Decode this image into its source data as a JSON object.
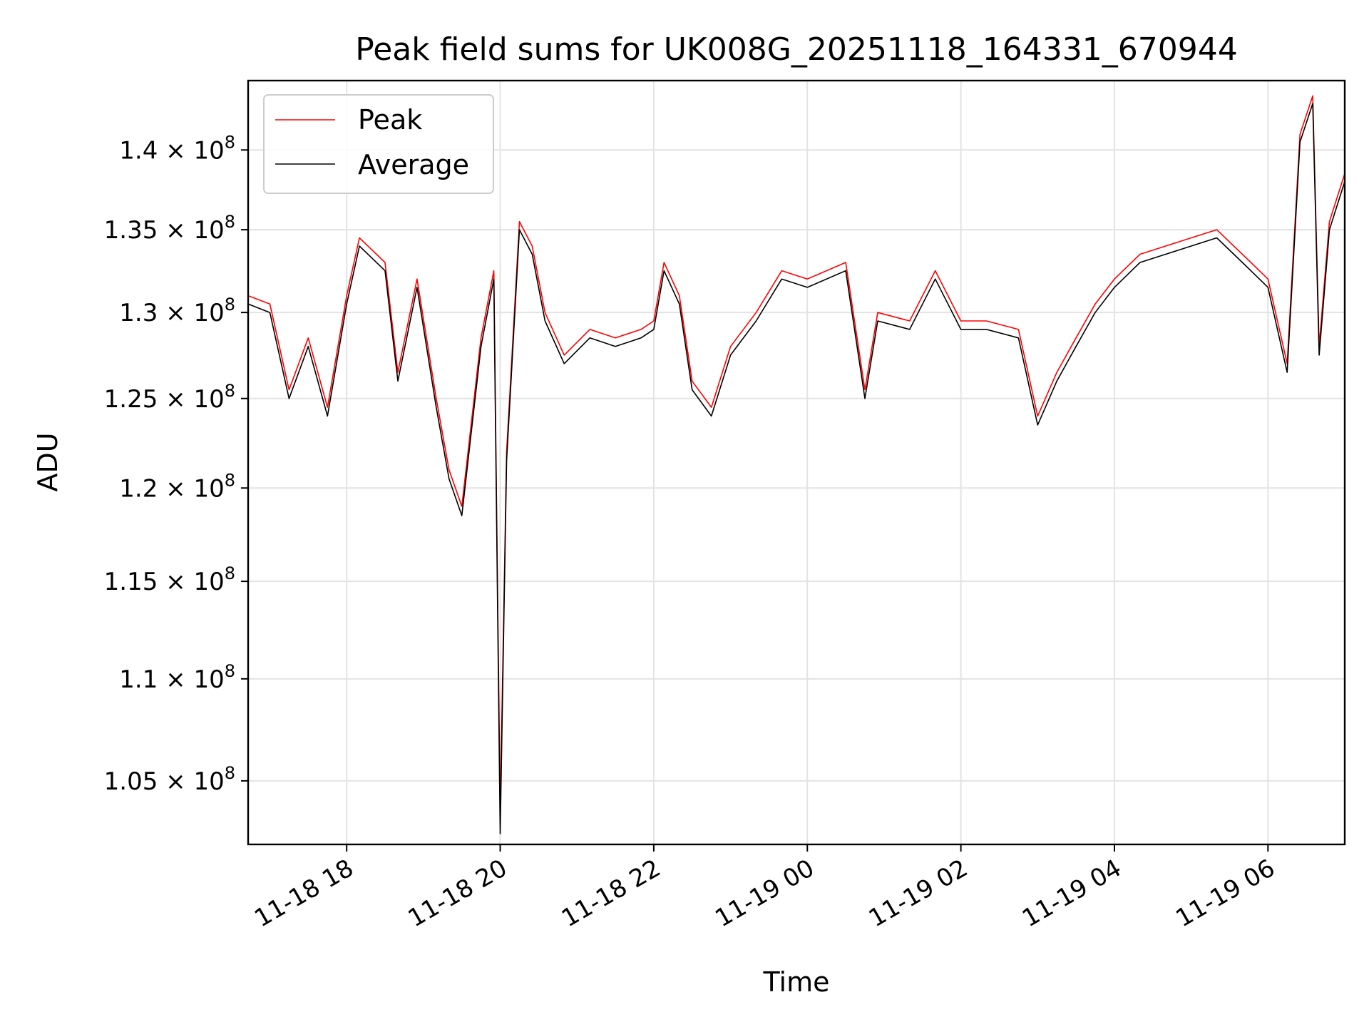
{
  "chart_data": {
    "type": "line",
    "title": "Peak field sums for UK008G_20251118_164331_670944",
    "xlabel": "Time",
    "ylabel": "ADU",
    "yscale": "log",
    "grid": true,
    "legend_position": "top-left",
    "xlim": [
      "2025-11-18 16:43",
      "2025-11-19 07:00"
    ],
    "ylim": [
      102000000,
      144500000
    ],
    "x_ticks": [
      "11-18 18",
      "11-18 20",
      "11-18 22",
      "11-19 00",
      "11-19 02",
      "11-19 04",
      "11-19 06"
    ],
    "y_ticks": [
      {
        "value": 105000000,
        "mantissa": "1.05",
        "exp": "8"
      },
      {
        "value": 110000000,
        "mantissa": "1.1",
        "exp": "8"
      },
      {
        "value": 115000000,
        "mantissa": "1.15",
        "exp": "8"
      },
      {
        "value": 120000000,
        "mantissa": "1.2",
        "exp": "8"
      },
      {
        "value": 125000000,
        "mantissa": "1.25",
        "exp": "8"
      },
      {
        "value": 130000000,
        "mantissa": "1.3",
        "exp": "8"
      },
      {
        "value": 135000000,
        "mantissa": "1.35",
        "exp": "8"
      },
      {
        "value": 140000000,
        "mantissa": "1.4",
        "exp": "8"
      }
    ],
    "series": [
      {
        "name": "Peak",
        "color": "#ff0000",
        "x": [
          "2025-11-18 16:43",
          "2025-11-18 17:00",
          "2025-11-18 17:15",
          "2025-11-18 17:30",
          "2025-11-18 17:45",
          "2025-11-18 18:00",
          "2025-11-18 18:10",
          "2025-11-18 18:30",
          "2025-11-18 18:40",
          "2025-11-18 18:55",
          "2025-11-18 19:10",
          "2025-11-18 19:20",
          "2025-11-18 19:30",
          "2025-11-18 19:45",
          "2025-11-18 19:55",
          "2025-11-18 20:00",
          "2025-11-18 20:05",
          "2025-11-18 20:15",
          "2025-11-18 20:25",
          "2025-11-18 20:35",
          "2025-11-18 20:50",
          "2025-11-18 21:10",
          "2025-11-18 21:30",
          "2025-11-18 21:50",
          "2025-11-18 22:00",
          "2025-11-18 22:08",
          "2025-11-18 22:20",
          "2025-11-18 22:30",
          "2025-11-18 22:45",
          "2025-11-18 23:00",
          "2025-11-18 23:20",
          "2025-11-18 23:40",
          "2025-11-19 00:00",
          "2025-11-19 00:30",
          "2025-11-19 00:45",
          "2025-11-19 00:55",
          "2025-11-19 01:20",
          "2025-11-19 01:40",
          "2025-11-19 02:00",
          "2025-11-19 02:20",
          "2025-11-19 02:45",
          "2025-11-19 03:00",
          "2025-11-19 03:15",
          "2025-11-19 03:30",
          "2025-11-19 03:45",
          "2025-11-19 04:00",
          "2025-11-19 04:20",
          "2025-11-19 04:40",
          "2025-11-19 05:00",
          "2025-11-19 05:20",
          "2025-11-19 05:40",
          "2025-11-19 06:00",
          "2025-11-19 06:15",
          "2025-11-19 06:25",
          "2025-11-19 06:35",
          "2025-11-19 06:40",
          "2025-11-19 06:48",
          "2025-11-19 07:00"
        ],
        "y": [
          131000000,
          130500000,
          125500000,
          128500000,
          124500000,
          131000000,
          134500000,
          133000000,
          126500000,
          132000000,
          125000000,
          121000000,
          119000000,
          128500000,
          132500000,
          103500000,
          122000000,
          135500000,
          134000000,
          130000000,
          127500000,
          129000000,
          128500000,
          129000000,
          129500000,
          133000000,
          131000000,
          126000000,
          124500000,
          128000000,
          130000000,
          132500000,
          132000000,
          133000000,
          125500000,
          130000000,
          129500000,
          132500000,
          129500000,
          129500000,
          129000000,
          124000000,
          126500000,
          128500000,
          130500000,
          132000000,
          133500000,
          134000000,
          134500000,
          135000000,
          133500000,
          132000000,
          127000000,
          141000000,
          143500000,
          128000000,
          135500000,
          138500000
        ]
      },
      {
        "name": "Average",
        "color": "#000000",
        "x": [
          "2025-11-18 16:43",
          "2025-11-18 17:00",
          "2025-11-18 17:15",
          "2025-11-18 17:30",
          "2025-11-18 17:45",
          "2025-11-18 18:00",
          "2025-11-18 18:10",
          "2025-11-18 18:30",
          "2025-11-18 18:40",
          "2025-11-18 18:55",
          "2025-11-18 19:10",
          "2025-11-18 19:20",
          "2025-11-18 19:30",
          "2025-11-18 19:45",
          "2025-11-18 19:55",
          "2025-11-18 20:00",
          "2025-11-18 20:05",
          "2025-11-18 20:15",
          "2025-11-18 20:25",
          "2025-11-18 20:35",
          "2025-11-18 20:50",
          "2025-11-18 21:10",
          "2025-11-18 21:30",
          "2025-11-18 21:50",
          "2025-11-18 22:00",
          "2025-11-18 22:08",
          "2025-11-18 22:20",
          "2025-11-18 22:30",
          "2025-11-18 22:45",
          "2025-11-18 23:00",
          "2025-11-18 23:20",
          "2025-11-18 23:40",
          "2025-11-19 00:00",
          "2025-11-19 00:30",
          "2025-11-19 00:45",
          "2025-11-19 00:55",
          "2025-11-19 01:20",
          "2025-11-19 01:40",
          "2025-11-19 02:00",
          "2025-11-19 02:20",
          "2025-11-19 02:45",
          "2025-11-19 03:00",
          "2025-11-19 03:15",
          "2025-11-19 03:30",
          "2025-11-19 03:45",
          "2025-11-19 04:00",
          "2025-11-19 04:20",
          "2025-11-19 04:40",
          "2025-11-19 05:00",
          "2025-11-19 05:20",
          "2025-11-19 05:40",
          "2025-11-19 06:00",
          "2025-11-19 06:15",
          "2025-11-19 06:25",
          "2025-11-19 06:35",
          "2025-11-19 06:40",
          "2025-11-19 06:48",
          "2025-11-19 07:00"
        ],
        "y": [
          130500000,
          130000000,
          125000000,
          128000000,
          124000000,
          130500000,
          134000000,
          132500000,
          126000000,
          131500000,
          124500000,
          120500000,
          118500000,
          128000000,
          132000000,
          102500000,
          121500000,
          135000000,
          133500000,
          129500000,
          127000000,
          128500000,
          128000000,
          128500000,
          129000000,
          132500000,
          130500000,
          125500000,
          124000000,
          127500000,
          129500000,
          132000000,
          131500000,
          132500000,
          125000000,
          129500000,
          129000000,
          132000000,
          129000000,
          129000000,
          128500000,
          123500000,
          126000000,
          128000000,
          130000000,
          131500000,
          133000000,
          133500000,
          134000000,
          134500000,
          133000000,
          131500000,
          126500000,
          140500000,
          143000000,
          127500000,
          135000000,
          138000000
        ]
      }
    ]
  }
}
